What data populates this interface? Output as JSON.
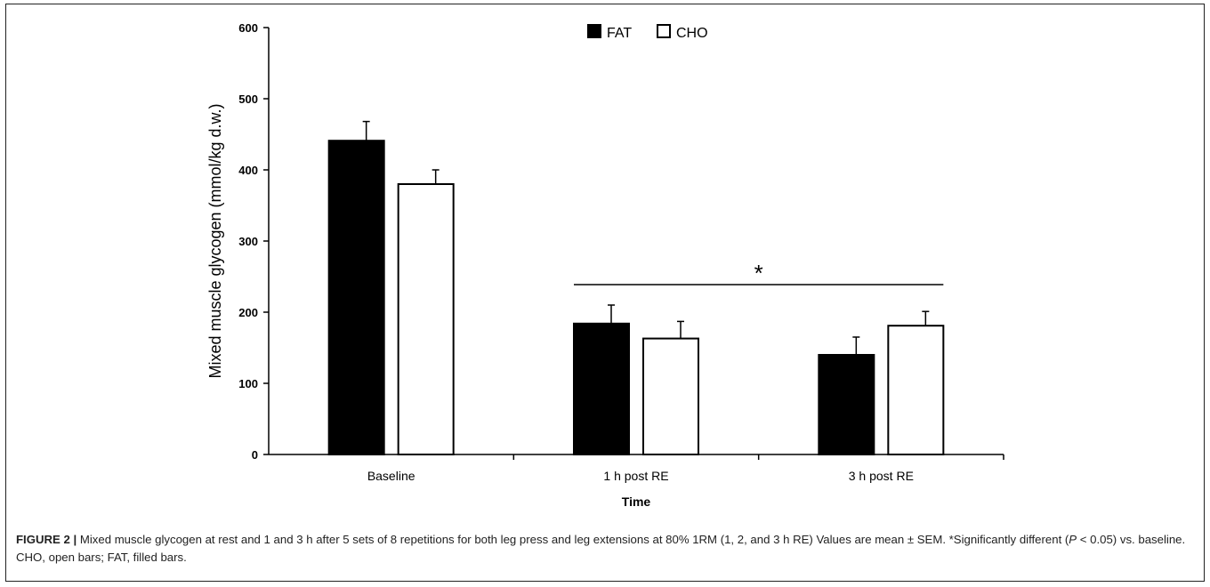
{
  "chart_data": {
    "type": "bar",
    "categories": [
      "Baseline",
      "1 h post RE",
      "3 h post RE"
    ],
    "series": [
      {
        "name": "FAT",
        "values": [
          441,
          184,
          140
        ],
        "errors": [
          27,
          26,
          25
        ],
        "fill": "#000000"
      },
      {
        "name": "CHO",
        "values": [
          380,
          163,
          181
        ],
        "errors": [
          20,
          24,
          20
        ],
        "fill": "#ffffff"
      }
    ],
    "xlabel": "Time",
    "ylabel": "Mixed muscle glycogen (mmol/kg d.w.)",
    "ylim": [
      0,
      600
    ],
    "yticks": [
      0,
      100,
      200,
      300,
      400,
      500,
      600
    ],
    "legend_position": "top-center",
    "grid": false,
    "annotation": {
      "text": "*",
      "spans": [
        "1 h post RE",
        "3 h post RE"
      ]
    }
  },
  "caption": {
    "figure_label": "FIGURE 2 |",
    "part1": " Mixed muscle glycogen at rest and 1 and 3 h after 5 sets of 8 repetitions for both leg press and leg extensions at 80% 1RM (1, 2, and 3 h RE) Values are mean ± SEM. *Significantly different (",
    "p_symbol": "P",
    "part2": " < 0.05) vs. baseline. CHO, open bars; FAT, filled bars."
  }
}
